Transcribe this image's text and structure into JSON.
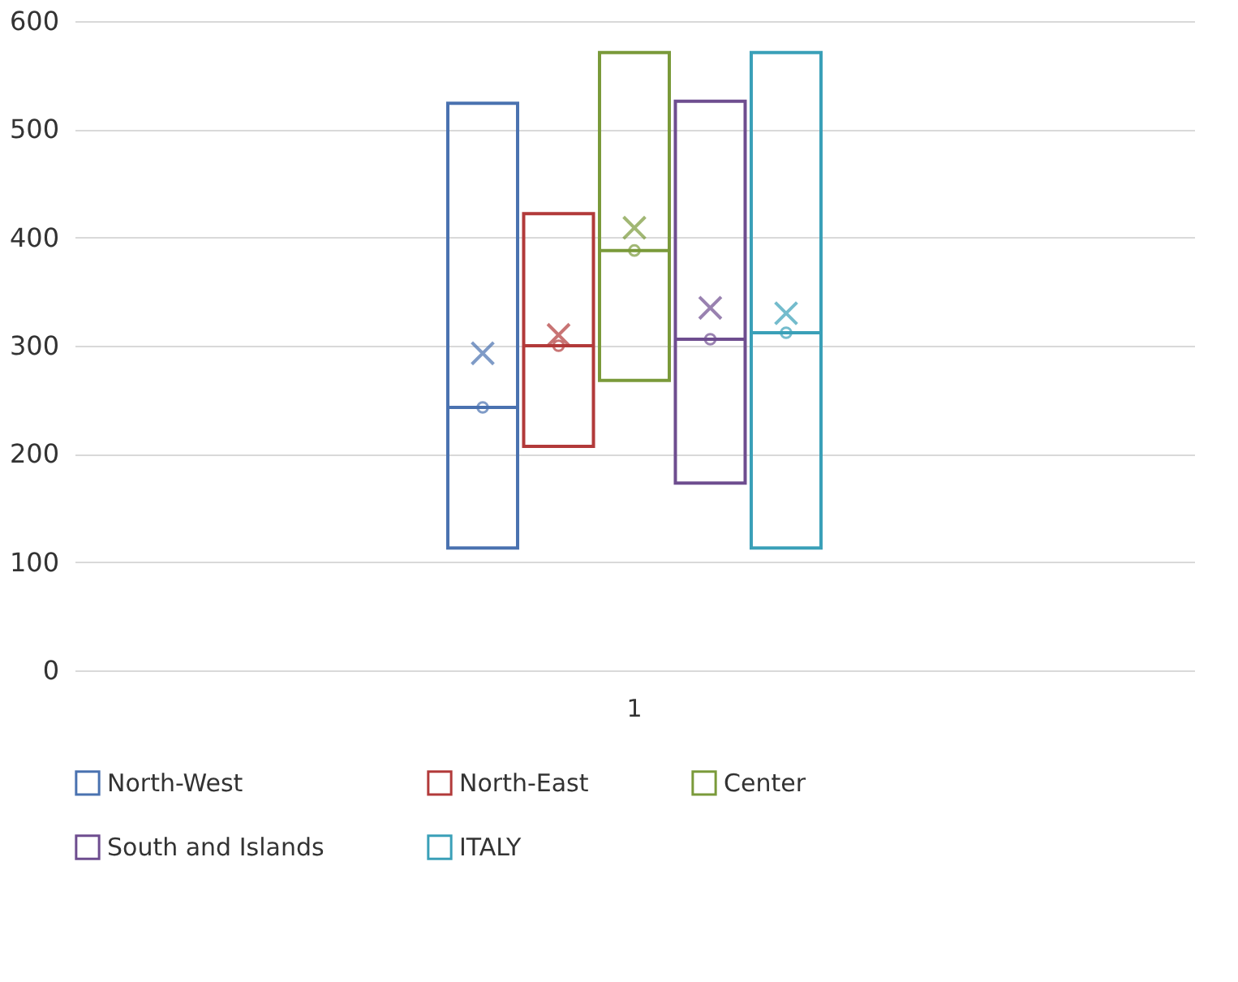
{
  "chart_data": {
    "type": "box",
    "categories": [
      "1"
    ],
    "series": [
      {
        "name": "North-West",
        "color": "#4a72b0",
        "boxes": [
          {
            "low": 113,
            "q1": 113,
            "median": 243,
            "q3": 524,
            "high": 524,
            "mean": 293,
            "outliers": [
              243
            ]
          }
        ]
      },
      {
        "name": "North-East",
        "color": "#b23a3a",
        "boxes": [
          {
            "low": 207,
            "q1": 207,
            "median": 300,
            "q3": 422,
            "high": 422,
            "mean": 310,
            "outliers": [
              300
            ]
          }
        ]
      },
      {
        "name": "Center",
        "color": "#7a9a3a",
        "boxes": [
          {
            "low": 268,
            "q1": 268,
            "median": 388,
            "q3": 571,
            "high": 571,
            "mean": 409,
            "outliers": [
              388
            ]
          }
        ]
      },
      {
        "name": "South and Islands",
        "color": "#6e4d8f",
        "boxes": [
          {
            "low": 173,
            "q1": 173,
            "median": 306,
            "q3": 526,
            "high": 526,
            "mean": 335,
            "outliers": [
              306
            ]
          }
        ]
      },
      {
        "name": "ITALY",
        "color": "#3aa0b8",
        "boxes": [
          {
            "low": 113,
            "q1": 113,
            "median": 312,
            "q3": 571,
            "high": 571,
            "mean": 330,
            "outliers": [
              312
            ]
          }
        ]
      }
    ],
    "ylim": [
      0,
      600
    ],
    "yticks": [
      0,
      100,
      200,
      300,
      400,
      500,
      600
    ],
    "grid": "y",
    "legend": "bottom"
  }
}
